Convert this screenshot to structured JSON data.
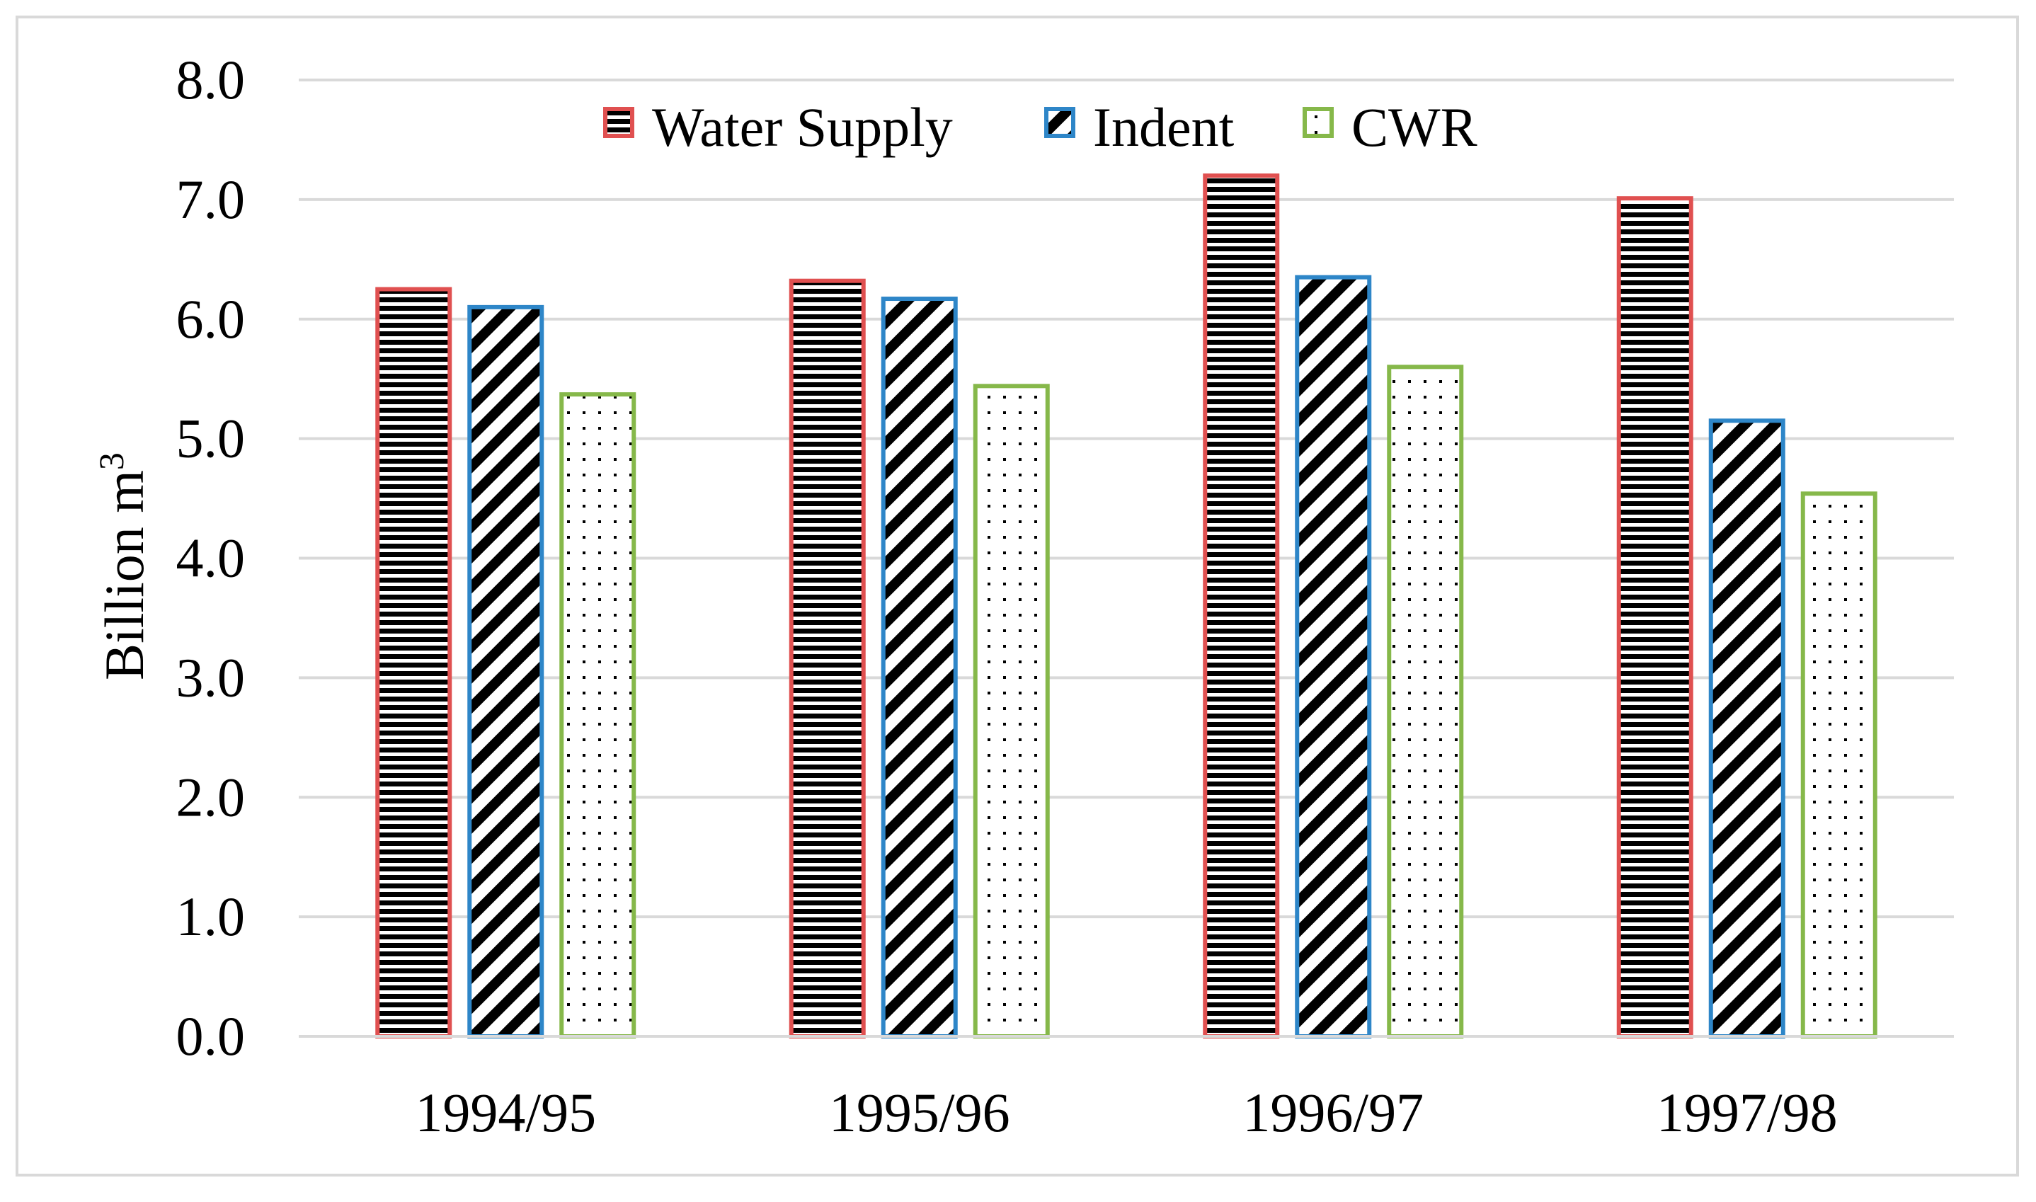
{
  "chart_data": {
    "type": "bar",
    "title": "",
    "xlabel": "",
    "ylabel": "Billion m",
    "ylabel_superscript": "3",
    "ylim": [
      0,
      8
    ],
    "ytick_step": 1,
    "ytick_labels": [
      "0.0",
      "1.0",
      "2.0",
      "3.0",
      "4.0",
      "5.0",
      "6.0",
      "7.0",
      "8.0"
    ],
    "grid": true,
    "legend_position": "top-center",
    "categories": [
      "1994/95",
      "1995/96",
      "1996/97",
      "1997/98"
    ],
    "series": [
      {
        "name": "Water Supply",
        "values": [
          6.25,
          6.32,
          7.2,
          7.01
        ],
        "color": "#e05050",
        "pattern": "horizontal-stripes"
      },
      {
        "name": "Indent",
        "values": [
          6.1,
          6.17,
          6.35,
          5.15
        ],
        "color": "#2e86c8",
        "pattern": "diagonal-stripes"
      },
      {
        "name": "CWR",
        "values": [
          5.37,
          5.44,
          5.6,
          4.54
        ],
        "color": "#86b84a",
        "pattern": "dots"
      }
    ]
  },
  "colors": {
    "grid": "#d9d9d9",
    "frame": "#d9d9d9",
    "ink": "#000000"
  }
}
